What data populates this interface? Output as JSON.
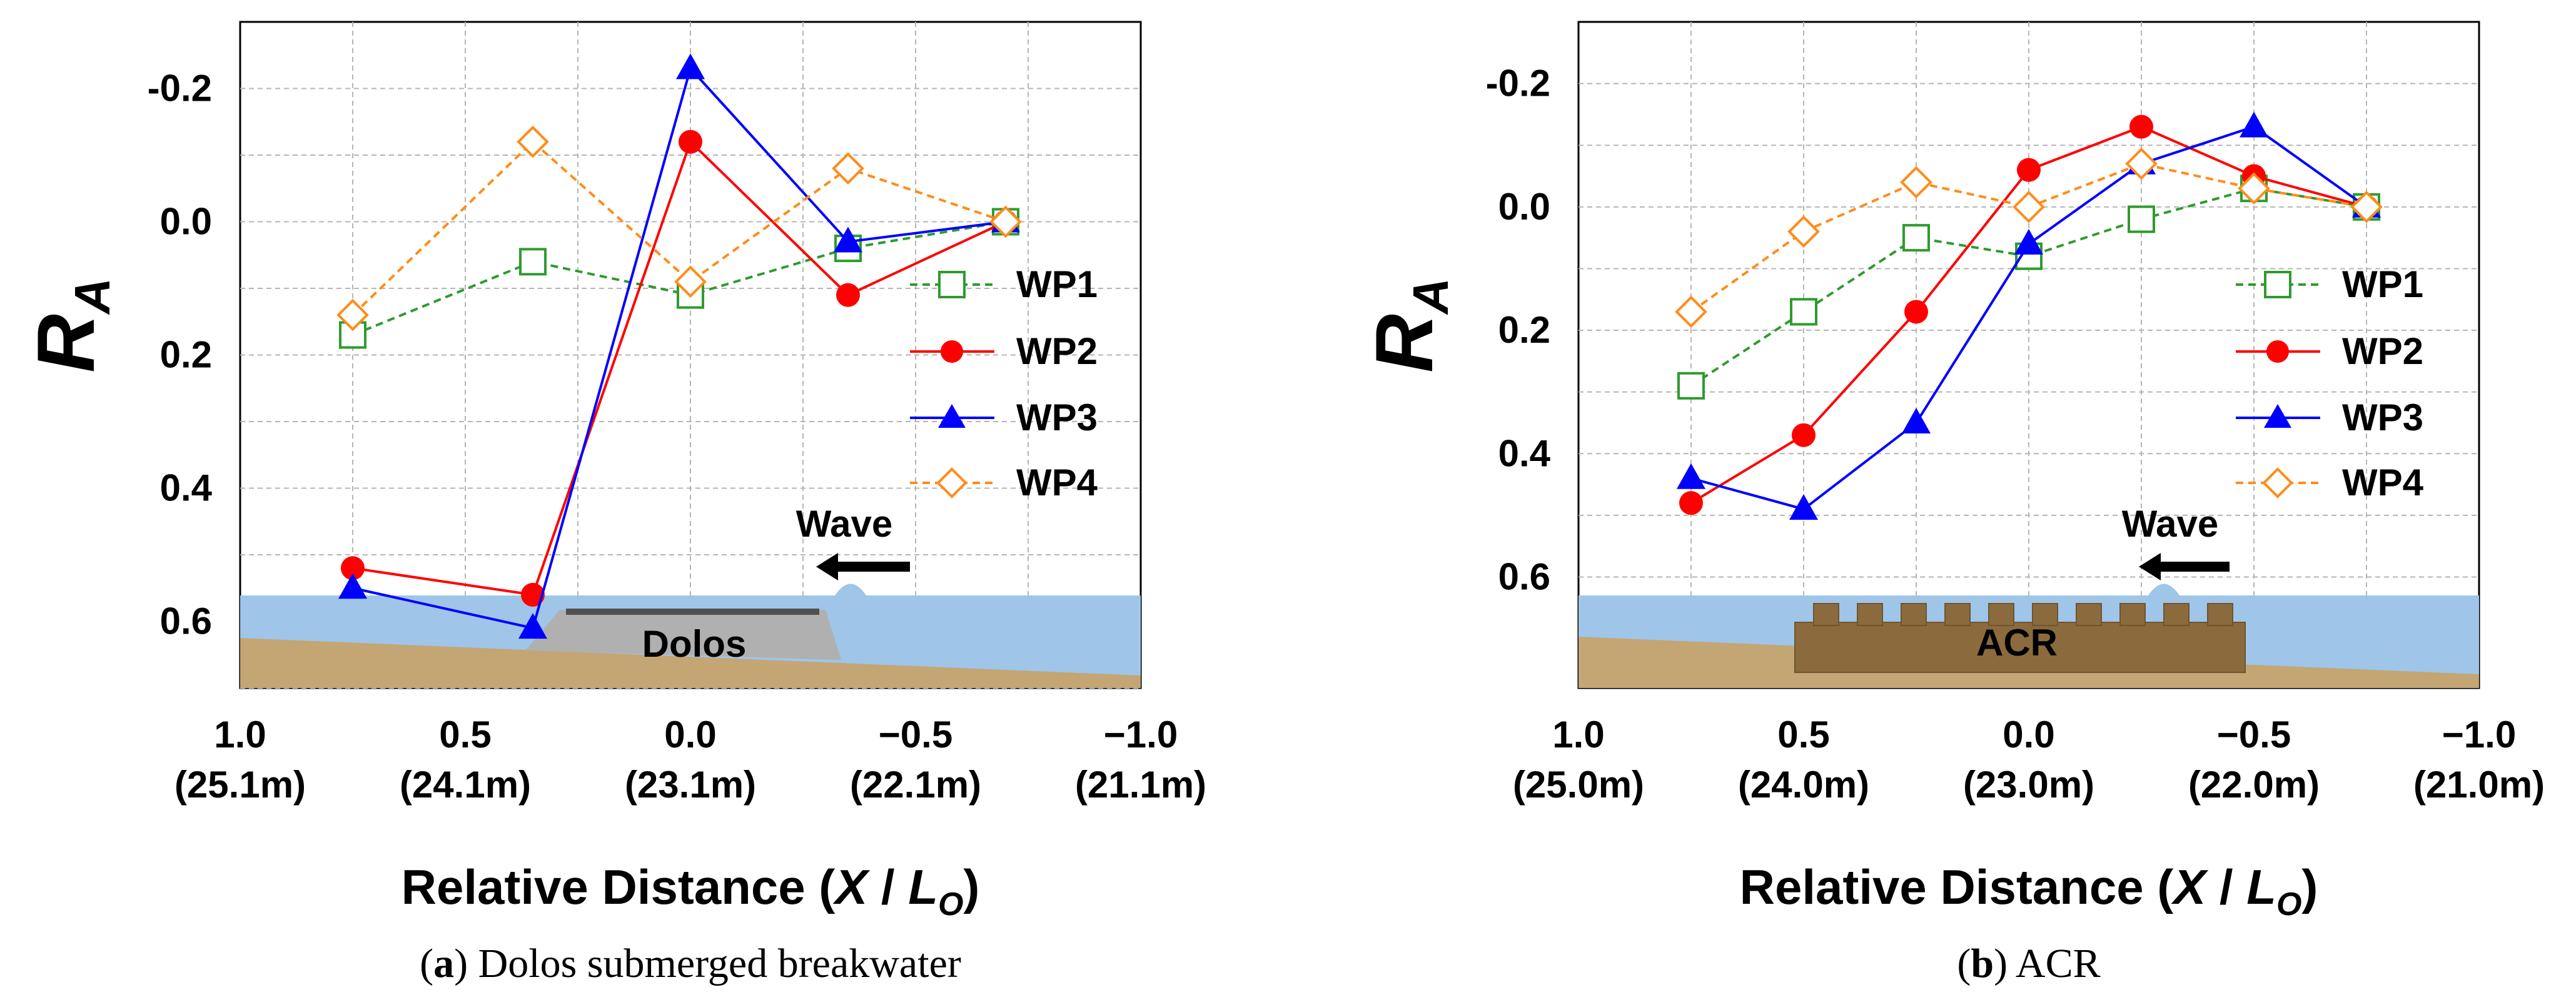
{
  "chart_data": [
    {
      "type": "line",
      "panel": "a",
      "ylabel": "R",
      "ylabel_sub": "A",
      "xlabel_prefix": "Relative Distance (",
      "xlabel_var": "X",
      "xlabel_sep": " / ",
      "xlabel_var2": "L",
      "xlabel_sub": "O",
      "xlabel_suffix": ")",
      "xlim": [
        1.0,
        -1.0
      ],
      "ylim": [
        -0.3,
        0.7
      ],
      "yaxis_inverted": true,
      "x_ticks": [
        1.0,
        0.5,
        0.0,
        -0.5,
        -1.0
      ],
      "x_tick_labels": [
        "1.0",
        "0.5",
        "0.0",
        "−0.5",
        "−1.0"
      ],
      "x_tick_sublabels": [
        "(25.1m)",
        "(24.1m)",
        "(23.1m)",
        "(22.1m)",
        "(21.1m)"
      ],
      "y_ticks": [
        -0.2,
        0.0,
        0.2,
        0.4,
        0.6
      ],
      "y_tick_labels": [
        "-0.2",
        "0.0",
        "0.2",
        "0.4",
        "0.6"
      ],
      "x": [
        0.75,
        0.35,
        0.0,
        -0.35,
        -0.7
      ],
      "series": [
        {
          "name": "WP1",
          "values": [
            0.17,
            0.06,
            0.11,
            0.04,
            0.0
          ],
          "color": "#2e9b2e",
          "dash": "12,8",
          "marker": "square",
          "filled": false
        },
        {
          "name": "WP2",
          "values": [
            0.52,
            0.56,
            -0.12,
            0.11,
            0.0
          ],
          "color": "#ff0000",
          "dash": "",
          "marker": "circle",
          "filled": true
        },
        {
          "name": "WP3",
          "values": [
            0.55,
            0.61,
            -0.23,
            0.03,
            0.0
          ],
          "color": "#0000ff",
          "dash": "",
          "marker": "triangle",
          "filled": true
        },
        {
          "name": "WP4",
          "values": [
            0.14,
            -0.12,
            0.09,
            -0.08,
            0.0
          ],
          "color": "#ff8c1a",
          "dash": "12,8",
          "marker": "diamond",
          "filled": false
        }
      ],
      "structure_label": "Dolos",
      "wave_label": "Wave",
      "caption_letter": "a",
      "caption_text": "Dolos submerged breakwater"
    },
    {
      "type": "line",
      "panel": "b",
      "ylabel": "R",
      "ylabel_sub": "A",
      "xlabel_prefix": "Relative Distance (",
      "xlabel_var": "X",
      "xlabel_sep": " / ",
      "xlabel_var2": "L",
      "xlabel_sub": "O",
      "xlabel_suffix": ")",
      "xlim": [
        1.0,
        -1.0
      ],
      "ylim": [
        -0.3,
        0.78
      ],
      "yaxis_inverted": true,
      "x_ticks": [
        1.0,
        0.5,
        0.0,
        -0.5,
        -1.0
      ],
      "x_tick_labels": [
        "1.0",
        "0.5",
        "0.0",
        "−0.5",
        "−1.0"
      ],
      "x_tick_sublabels": [
        "(25.0m)",
        "(24.0m)",
        "(23.0m)",
        "(22.0m)",
        "(21.0m)"
      ],
      "y_ticks": [
        -0.2,
        0.0,
        0.2,
        0.4,
        0.6
      ],
      "y_tick_labels": [
        "-0.2",
        "0.0",
        "0.2",
        "0.4",
        "0.6"
      ],
      "x": [
        0.75,
        0.5,
        0.25,
        0.0,
        -0.25,
        -0.5,
        -0.75
      ],
      "series": [
        {
          "name": "WP1",
          "values": [
            0.29,
            0.17,
            0.05,
            0.08,
            0.02,
            -0.03,
            0.0
          ],
          "color": "#2e9b2e",
          "dash": "12,8",
          "marker": "square",
          "filled": false
        },
        {
          "name": "WP2",
          "values": [
            0.48,
            0.37,
            0.17,
            -0.06,
            -0.13,
            -0.05,
            0.0
          ],
          "color": "#ff0000",
          "dash": "",
          "marker": "circle",
          "filled": true
        },
        {
          "name": "WP3",
          "values": [
            0.44,
            0.49,
            0.35,
            0.06,
            -0.07,
            -0.13,
            0.0
          ],
          "color": "#0000ff",
          "dash": "",
          "marker": "triangle",
          "filled": true
        },
        {
          "name": "WP4",
          "values": [
            0.17,
            0.04,
            -0.04,
            0.0,
            -0.07,
            -0.03,
            0.0
          ],
          "color": "#ff8c1a",
          "dash": "12,8",
          "marker": "diamond",
          "filled": false
        }
      ],
      "structure_label": "ACR",
      "wave_label": "Wave",
      "caption_letter": "b",
      "caption_text": "ACR"
    }
  ]
}
